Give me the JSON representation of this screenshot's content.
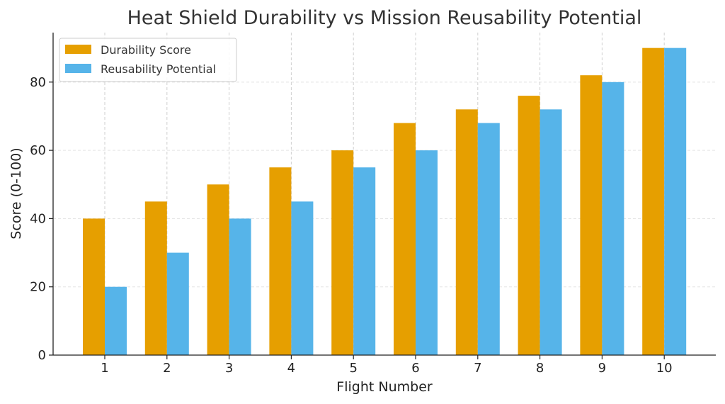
{
  "chart_data": {
    "type": "bar",
    "title": "Heat Shield Durability vs Mission Reusability Potential",
    "xlabel": "Flight Number",
    "ylabel": "Score (0-100)",
    "categories": [
      "1",
      "2",
      "3",
      "4",
      "5",
      "6",
      "7",
      "8",
      "9",
      "10"
    ],
    "series": [
      {
        "name": "Durability Score",
        "color": "#E69F00",
        "values": [
          40,
          45,
          50,
          55,
          60,
          68,
          72,
          76,
          82,
          90
        ]
      },
      {
        "name": "Reusability Potential",
        "color": "#56B4E9",
        "values": [
          20,
          30,
          40,
          45,
          55,
          60,
          68,
          72,
          80,
          90
        ]
      }
    ],
    "ylim": [
      0,
      94.5
    ],
    "yticks": [
      0,
      20,
      40,
      60,
      80
    ],
    "grid": true,
    "legend": "top-left"
  }
}
